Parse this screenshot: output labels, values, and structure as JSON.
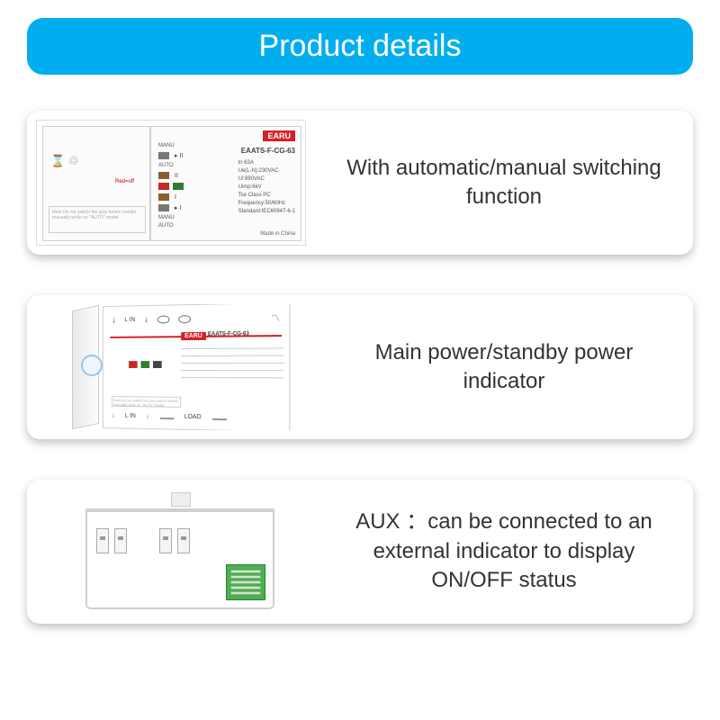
{
  "header": {
    "title": "Product details"
  },
  "style": {
    "header_bg": "#00aef0",
    "header_text_color": "#ffffff",
    "card_shadow": "0 4px 10px rgba(0,0,0,0.25)",
    "text_color": "#333333",
    "font_size_header": 34,
    "font_size_card": 24
  },
  "brand": {
    "name": "EARU",
    "color": "#d52027"
  },
  "product_model": "EAATS-F-CG-63",
  "specs": {
    "in": "In 63A",
    "ue": "Ue(L-N):230VAC",
    "ui": "Ui:690VAC",
    "uimp": "Uimp:6kV",
    "class": "Tse Class PC",
    "freq": "Frequency:50/60Hz",
    "std": "Standard:IEC60947-6-1",
    "made": "Made in China"
  },
  "labels": {
    "manu": "MANU",
    "auto": "AUTO",
    "redoff": "Red=off",
    "greenon": "Green=on",
    "lin": "L IN",
    "load": "LOAD",
    "note": "Note:Do not switch the grey button handle manually while on \"AUTO\" model"
  },
  "leds": {
    "red": "#c62828",
    "green": "#2e7d32",
    "grey": "#777777",
    "brown": "#8d5b2f",
    "aux_green": "#4caf50"
  },
  "cards": [
    {
      "caption": "With automatic/manual switching function"
    },
    {
      "caption": "Main power/standby power indicator"
    },
    {
      "caption": "AUX ：can be connected to an external indicator to display ON/OFF status"
    }
  ]
}
